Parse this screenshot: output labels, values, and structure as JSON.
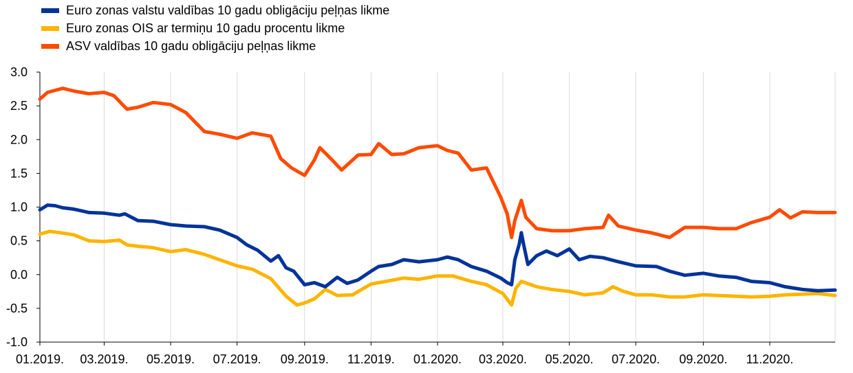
{
  "chart_data": {
    "type": "line",
    "title": "",
    "xlabel": "",
    "ylabel": "",
    "ylim": [
      -1.0,
      3.0
    ],
    "yticks": [
      3.0,
      2.5,
      2.0,
      1.5,
      1.0,
      0.5,
      0.0,
      -0.5,
      -1.0
    ],
    "ytick_labels": [
      "3.0",
      "2.5",
      "2.0",
      "1.5",
      "1.0",
      "0.5",
      "0.0",
      "-0.5",
      "-1.0"
    ],
    "xlim": [
      "01.01.2019",
      "31.12.2020"
    ],
    "xtick_labels": [
      "01.2019.",
      "03.2019.",
      "05.2019.",
      "07.2019.",
      "09.2019.",
      "11.2019.",
      "01.2020.",
      "03.2020.",
      "05.2020.",
      "07.2020.",
      "09.2020.",
      "11.2020."
    ],
    "grid": "vertical",
    "legend_position": "top-left",
    "series": [
      {
        "name": "Euro zonas valstu valdības 10 gadu obligāciju peļņas likme",
        "color": "#003399",
        "points": [
          [
            "2019-01-01",
            0.96
          ],
          [
            "2019-01-08",
            1.03
          ],
          [
            "2019-01-15",
            1.02
          ],
          [
            "2019-01-22",
            0.99
          ],
          [
            "2019-02-01",
            0.97
          ],
          [
            "2019-02-15",
            0.92
          ],
          [
            "2019-03-01",
            0.91
          ],
          [
            "2019-03-15",
            0.88
          ],
          [
            "2019-03-20",
            0.9
          ],
          [
            "2019-04-01",
            0.8
          ],
          [
            "2019-04-15",
            0.79
          ],
          [
            "2019-05-01",
            0.74
          ],
          [
            "2019-05-15",
            0.72
          ],
          [
            "2019-06-01",
            0.71
          ],
          [
            "2019-06-15",
            0.66
          ],
          [
            "2019-07-01",
            0.55
          ],
          [
            "2019-07-10",
            0.44
          ],
          [
            "2019-07-20",
            0.36
          ],
          [
            "2019-08-01",
            0.2
          ],
          [
            "2019-08-08",
            0.28
          ],
          [
            "2019-08-15",
            0.1
          ],
          [
            "2019-08-22",
            0.05
          ],
          [
            "2019-09-01",
            -0.15
          ],
          [
            "2019-09-10",
            -0.12
          ],
          [
            "2019-09-20",
            -0.18
          ],
          [
            "2019-10-01",
            -0.04
          ],
          [
            "2019-10-10",
            -0.13
          ],
          [
            "2019-10-20",
            -0.08
          ],
          [
            "2019-11-01",
            0.05
          ],
          [
            "2019-11-08",
            0.12
          ],
          [
            "2019-11-20",
            0.15
          ],
          [
            "2019-12-01",
            0.22
          ],
          [
            "2019-12-15",
            0.19
          ],
          [
            "2020-01-01",
            0.22
          ],
          [
            "2020-01-10",
            0.26
          ],
          [
            "2020-01-20",
            0.22
          ],
          [
            "2020-02-01",
            0.12
          ],
          [
            "2020-02-15",
            0.05
          ],
          [
            "2020-02-28",
            -0.05
          ],
          [
            "2020-03-05",
            -0.12
          ],
          [
            "2020-03-09",
            -0.15
          ],
          [
            "2020-03-12",
            0.22
          ],
          [
            "2020-03-16",
            0.45
          ],
          [
            "2020-03-18",
            0.62
          ],
          [
            "2020-03-20",
            0.45
          ],
          [
            "2020-03-24",
            0.15
          ],
          [
            "2020-04-01",
            0.28
          ],
          [
            "2020-04-10",
            0.35
          ],
          [
            "2020-04-20",
            0.28
          ],
          [
            "2020-05-01",
            0.38
          ],
          [
            "2020-05-10",
            0.22
          ],
          [
            "2020-05-20",
            0.27
          ],
          [
            "2020-06-01",
            0.25
          ],
          [
            "2020-06-15",
            0.19
          ],
          [
            "2020-07-01",
            0.13
          ],
          [
            "2020-07-20",
            0.12
          ],
          [
            "2020-08-01",
            0.05
          ],
          [
            "2020-08-15",
            -0.01
          ],
          [
            "2020-09-01",
            0.02
          ],
          [
            "2020-09-15",
            -0.02
          ],
          [
            "2020-10-01",
            -0.04
          ],
          [
            "2020-10-15",
            -0.1
          ],
          [
            "2020-11-01",
            -0.12
          ],
          [
            "2020-11-15",
            -0.18
          ],
          [
            "2020-12-01",
            -0.22
          ],
          [
            "2020-12-15",
            -0.24
          ],
          [
            "2020-12-31",
            -0.23
          ]
        ]
      },
      {
        "name": "Euro zonas OIS ar termiņu 10 gadu procentu likme",
        "color": "#FFB400",
        "points": [
          [
            "2019-01-01",
            0.6
          ],
          [
            "2019-01-10",
            0.64
          ],
          [
            "2019-01-20",
            0.62
          ],
          [
            "2019-02-01",
            0.59
          ],
          [
            "2019-02-15",
            0.5
          ],
          [
            "2019-03-01",
            0.49
          ],
          [
            "2019-03-15",
            0.51
          ],
          [
            "2019-03-22",
            0.44
          ],
          [
            "2019-04-01",
            0.42
          ],
          [
            "2019-04-15",
            0.4
          ],
          [
            "2019-05-01",
            0.34
          ],
          [
            "2019-05-15",
            0.37
          ],
          [
            "2019-06-01",
            0.3
          ],
          [
            "2019-06-15",
            0.22
          ],
          [
            "2019-07-01",
            0.13
          ],
          [
            "2019-07-15",
            0.08
          ],
          [
            "2019-08-01",
            -0.06
          ],
          [
            "2019-08-15",
            -0.32
          ],
          [
            "2019-08-25",
            -0.45
          ],
          [
            "2019-09-01",
            -0.42
          ],
          [
            "2019-09-10",
            -0.36
          ],
          [
            "2019-09-20",
            -0.22
          ],
          [
            "2019-10-01",
            -0.31
          ],
          [
            "2019-10-15",
            -0.3
          ],
          [
            "2019-11-01",
            -0.14
          ],
          [
            "2019-11-15",
            -0.1
          ],
          [
            "2019-12-01",
            -0.05
          ],
          [
            "2019-12-15",
            -0.07
          ],
          [
            "2020-01-01",
            -0.02
          ],
          [
            "2020-01-15",
            -0.02
          ],
          [
            "2020-02-01",
            -0.1
          ],
          [
            "2020-02-15",
            -0.15
          ],
          [
            "2020-03-01",
            -0.28
          ],
          [
            "2020-03-09",
            -0.45
          ],
          [
            "2020-03-13",
            -0.2
          ],
          [
            "2020-03-18",
            -0.1
          ],
          [
            "2020-04-01",
            -0.18
          ],
          [
            "2020-04-15",
            -0.22
          ],
          [
            "2020-05-01",
            -0.25
          ],
          [
            "2020-05-15",
            -0.3
          ],
          [
            "2020-06-01",
            -0.27
          ],
          [
            "2020-06-10",
            -0.18
          ],
          [
            "2020-06-20",
            -0.25
          ],
          [
            "2020-07-01",
            -0.3
          ],
          [
            "2020-07-15",
            -0.3
          ],
          [
            "2020-08-01",
            -0.33
          ],
          [
            "2020-08-15",
            -0.33
          ],
          [
            "2020-09-01",
            -0.3
          ],
          [
            "2020-09-15",
            -0.31
          ],
          [
            "2020-10-01",
            -0.32
          ],
          [
            "2020-10-15",
            -0.33
          ],
          [
            "2020-11-01",
            -0.32
          ],
          [
            "2020-11-15",
            -0.3
          ],
          [
            "2020-12-01",
            -0.29
          ],
          [
            "2020-12-15",
            -0.28
          ],
          [
            "2020-12-31",
            -0.31
          ]
        ]
      },
      {
        "name": "ASV valdības 10 gadu obligāciju peļņas likme",
        "color": "#FF4B00",
        "points": [
          [
            "2019-01-01",
            2.6
          ],
          [
            "2019-01-08",
            2.7
          ],
          [
            "2019-01-15",
            2.73
          ],
          [
            "2019-01-22",
            2.76
          ],
          [
            "2019-02-01",
            2.72
          ],
          [
            "2019-02-15",
            2.68
          ],
          [
            "2019-03-01",
            2.7
          ],
          [
            "2019-03-10",
            2.65
          ],
          [
            "2019-03-22",
            2.45
          ],
          [
            "2019-04-01",
            2.48
          ],
          [
            "2019-04-15",
            2.55
          ],
          [
            "2019-05-01",
            2.52
          ],
          [
            "2019-05-15",
            2.4
          ],
          [
            "2019-06-01",
            2.12
          ],
          [
            "2019-06-15",
            2.08
          ],
          [
            "2019-07-01",
            2.02
          ],
          [
            "2019-07-15",
            2.1
          ],
          [
            "2019-08-01",
            2.05
          ],
          [
            "2019-08-10",
            1.72
          ],
          [
            "2019-08-20",
            1.58
          ],
          [
            "2019-09-01",
            1.47
          ],
          [
            "2019-09-10",
            1.7
          ],
          [
            "2019-09-15",
            1.88
          ],
          [
            "2019-09-25",
            1.72
          ],
          [
            "2019-10-05",
            1.55
          ],
          [
            "2019-10-20",
            1.77
          ],
          [
            "2019-11-01",
            1.78
          ],
          [
            "2019-11-08",
            1.94
          ],
          [
            "2019-11-20",
            1.78
          ],
          [
            "2019-12-01",
            1.79
          ],
          [
            "2019-12-15",
            1.88
          ],
          [
            "2020-01-01",
            1.91
          ],
          [
            "2020-01-10",
            1.84
          ],
          [
            "2020-01-20",
            1.8
          ],
          [
            "2020-02-01",
            1.55
          ],
          [
            "2020-02-15",
            1.58
          ],
          [
            "2020-02-28",
            1.15
          ],
          [
            "2020-03-05",
            0.9
          ],
          [
            "2020-03-09",
            0.55
          ],
          [
            "2020-03-12",
            0.8
          ],
          [
            "2020-03-18",
            1.1
          ],
          [
            "2020-03-22",
            0.85
          ],
          [
            "2020-04-01",
            0.68
          ],
          [
            "2020-04-15",
            0.65
          ],
          [
            "2020-05-01",
            0.65
          ],
          [
            "2020-05-15",
            0.68
          ],
          [
            "2020-06-01",
            0.7
          ],
          [
            "2020-06-06",
            0.88
          ],
          [
            "2020-06-15",
            0.72
          ],
          [
            "2020-07-01",
            0.66
          ],
          [
            "2020-07-15",
            0.62
          ],
          [
            "2020-08-01",
            0.55
          ],
          [
            "2020-08-15",
            0.7
          ],
          [
            "2020-09-01",
            0.7
          ],
          [
            "2020-09-15",
            0.68
          ],
          [
            "2020-10-01",
            0.68
          ],
          [
            "2020-10-15",
            0.77
          ],
          [
            "2020-11-01",
            0.85
          ],
          [
            "2020-11-10",
            0.96
          ],
          [
            "2020-11-20",
            0.84
          ],
          [
            "2020-12-01",
            0.93
          ],
          [
            "2020-12-15",
            0.92
          ],
          [
            "2020-12-31",
            0.92
          ]
        ]
      }
    ]
  }
}
